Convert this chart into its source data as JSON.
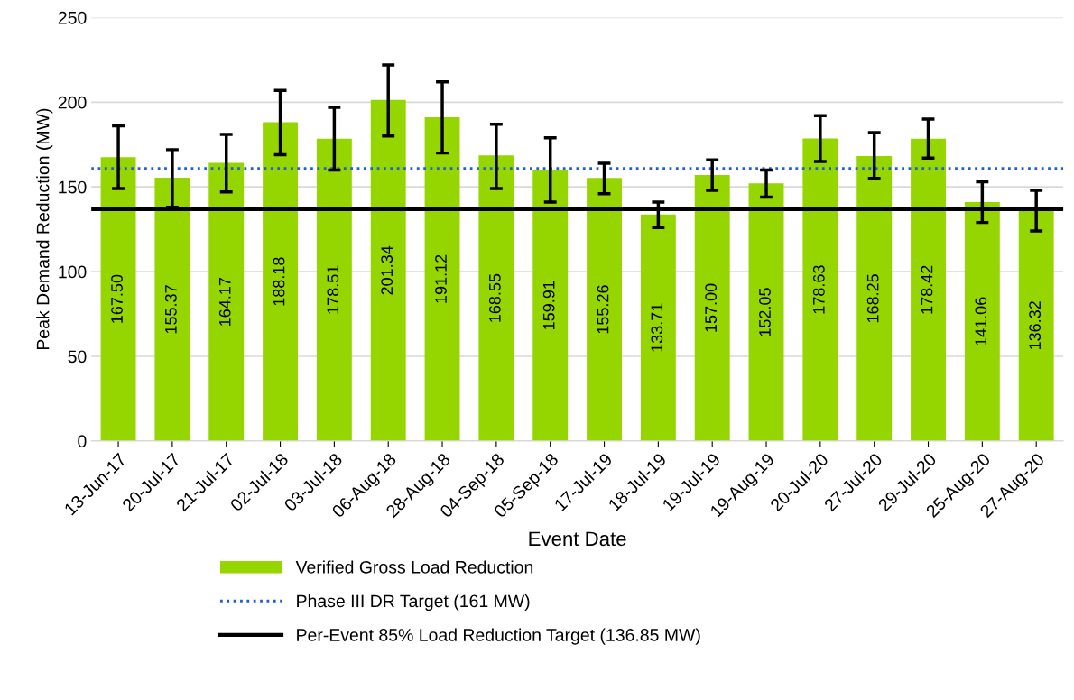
{
  "chart_data": {
    "type": "bar",
    "xlabel": "Event Date",
    "ylabel": "Peak Demand Reduction (MW)",
    "categories": [
      "13-Jun-17",
      "20-Jul-17",
      "21-Jul-17",
      "02-Jul-18",
      "03-Jul-18",
      "06-Aug-18",
      "28-Aug-18",
      "04-Sep-18",
      "05-Sep-18",
      "17-Jul-19",
      "18-Jul-19",
      "19-Jul-19",
      "19-Aug-19",
      "20-Jul-20",
      "27-Jul-20",
      "29-Jul-20",
      "25-Aug-20",
      "27-Aug-20"
    ],
    "series": [
      {
        "name": "Verified Gross Load Reduction",
        "color": "#96d600",
        "values": [
          167.5,
          155.37,
          164.17,
          188.18,
          178.51,
          201.34,
          191.12,
          168.55,
          159.91,
          155.26,
          133.71,
          157.0,
          152.05,
          178.63,
          168.25,
          178.42,
          141.06,
          136.32
        ],
        "errors": [
          [
            149,
            186
          ],
          [
            138,
            172
          ],
          [
            147,
            181
          ],
          [
            169,
            207
          ],
          [
            160,
            197
          ],
          [
            180,
            222
          ],
          [
            170,
            212
          ],
          [
            149,
            187
          ],
          [
            141,
            179
          ],
          [
            146,
            164
          ],
          [
            126,
            141
          ],
          [
            148,
            166
          ],
          [
            144,
            160
          ],
          [
            165,
            192
          ],
          [
            155,
            182
          ],
          [
            167,
            190
          ],
          [
            129,
            153
          ],
          [
            124,
            148
          ]
        ]
      }
    ],
    "value_labels": [
      "167.50",
      "155.37",
      "164.17",
      "188.18",
      "178.51",
      "201.34",
      "191.12",
      "168.55",
      "159.91",
      "155.26",
      "133.71",
      "157.00",
      "152.05",
      "178.63",
      "168.25",
      "178.42",
      "141.06",
      "136.32"
    ],
    "ylim": [
      0,
      250
    ],
    "yticks": [
      0,
      50,
      100,
      150,
      200,
      250
    ],
    "grid": "y",
    "legend": "bottom",
    "ref_lines": [
      {
        "axis": "y",
        "value": 161,
        "label": "Phase III DR Target (161 MW)",
        "color": "#1f5fd6",
        "line_style": "dotted"
      },
      {
        "axis": "y",
        "value": 136.85,
        "label": "Per-Event 85% Load Reduction Target (136.85 MW)",
        "color": "#000000",
        "line_style": "solid"
      }
    ]
  }
}
